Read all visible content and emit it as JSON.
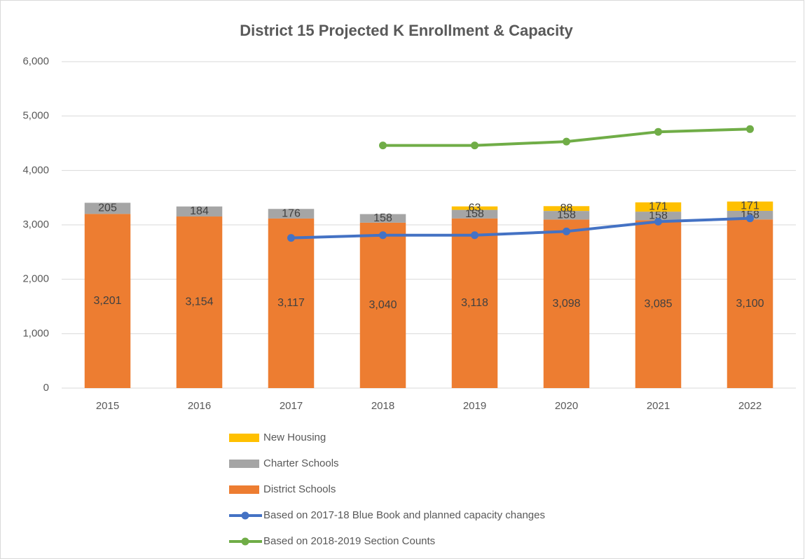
{
  "chart_data": {
    "type": "bar",
    "title": "District 15 Projected K Enrollment & Capacity",
    "categories": [
      "2015",
      "2016",
      "2017",
      "2018",
      "2019",
      "2020",
      "2021",
      "2022"
    ],
    "series": [
      {
        "name": "New Housing",
        "type": "bar",
        "color": "#ffc000",
        "values": [
          null,
          null,
          null,
          null,
          63,
          88,
          171,
          171
        ]
      },
      {
        "name": "Charter Schools",
        "type": "bar",
        "color": "#a5a5a5",
        "values": [
          205,
          184,
          176,
          158,
          158,
          158,
          158,
          158
        ]
      },
      {
        "name": "District Schools",
        "type": "bar",
        "color": "#ed7d31",
        "values": [
          3201,
          3154,
          3117,
          3040,
          3118,
          3098,
          3085,
          3100
        ],
        "value_labels": [
          "3,201",
          "3,154",
          "3,117",
          "3,040",
          "3,118",
          "3,098",
          "3,085",
          "3,100"
        ]
      },
      {
        "name": "Based on 2017-18 Blue Book and planned capacity changes",
        "type": "line",
        "color": "#4472c4",
        "values": [
          null,
          null,
          2760,
          2810,
          2810,
          2880,
          3060,
          3120
        ]
      },
      {
        "name": "Based on 2018-2019 Section Counts",
        "type": "line",
        "color": "#70ad47",
        "values": [
          null,
          null,
          null,
          4460,
          4460,
          4530,
          4710,
          4760
        ]
      }
    ],
    "ylim": [
      0,
      6000
    ],
    "yticks": [
      0,
      {
        "value": 1000,
        "label": "1,000"
      },
      {
        "value": 2000,
        "label": "2,000"
      },
      {
        "value": 3000,
        "label": "3,000"
      },
      {
        "value": 4000,
        "label": "4,000"
      },
      {
        "value": 5000,
        "label": "5,000"
      },
      {
        "value": 6000,
        "label": "6,000"
      }
    ],
    "grid": true,
    "legend": "bottom"
  }
}
